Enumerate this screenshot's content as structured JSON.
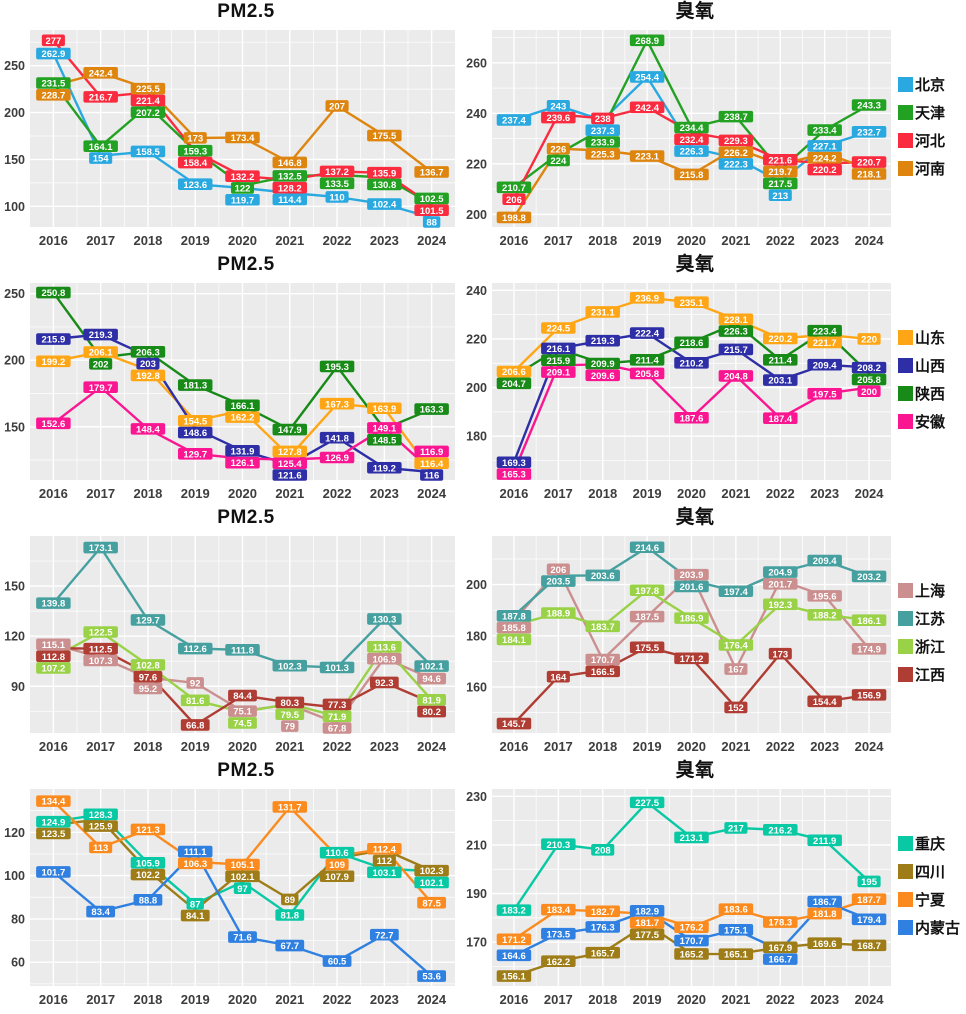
{
  "style": {
    "plot_background": "#ebebeb",
    "grid_color": "#ffffff",
    "axis_text_color": "#3d3d3d",
    "label_text_color": "#ffffff"
  },
  "chart_data": [
    {
      "type": "line",
      "row": 1,
      "panel": "left",
      "title": "PM2.5",
      "x": [
        "2016",
        "2017",
        "2018",
        "2019",
        "2020",
        "2021",
        "2022",
        "2023",
        "2024"
      ],
      "ylim": [
        78,
        288
      ],
      "yticks": [
        100,
        150,
        200,
        250
      ],
      "grid": true,
      "series": [
        {
          "name": "北京",
          "color": "#2aa9e0",
          "values": [
            262.9,
            154,
            158.5,
            123.6,
            119.7,
            114.4,
            110,
            102.4,
            88
          ]
        },
        {
          "name": "天津",
          "color": "#23a123",
          "values": [
            231.5,
            164.1,
            207.2,
            159.3,
            122,
            132.5,
            133.5,
            130.8,
            102.5
          ]
        },
        {
          "name": "河北",
          "color": "#fa2b3f",
          "values": [
            277,
            216.7,
            221.4,
            158.4,
            132.2,
            128.2,
            137.2,
            135.9,
            101.5
          ]
        },
        {
          "name": "河南",
          "color": "#dd850f",
          "values": [
            228.7,
            242.4,
            225.5,
            173,
            173.4,
            146.8,
            207,
            175.5,
            136.7
          ]
        }
      ]
    },
    {
      "type": "line",
      "row": 1,
      "panel": "right",
      "title": "臭氧",
      "legend_position": "right",
      "x": [
        "2016",
        "2017",
        "2018",
        "2019",
        "2020",
        "2021",
        "2022",
        "2023",
        "2024"
      ],
      "ylim": [
        195,
        273
      ],
      "yticks": [
        200,
        220,
        240,
        260
      ],
      "grid": true,
      "series": [
        {
          "name": "北京",
          "color": "#2aa9e0",
          "values": [
            237.4,
            243,
            237.3,
            254.4,
            226.3,
            222.3,
            213,
            227.1,
            232.7
          ]
        },
        {
          "name": "天津",
          "color": "#23a123",
          "values": [
            210.7,
            224,
            233.9,
            268.9,
            234.4,
            238.7,
            217.5,
            233.4,
            243.3
          ]
        },
        {
          "name": "河北",
          "color": "#fa2b3f",
          "values": [
            206,
            239.6,
            238,
            242.4,
            232.4,
            229.3,
            221.6,
            220.2,
            220.7
          ]
        },
        {
          "name": "河南",
          "color": "#dd850f",
          "values": [
            198.8,
            226,
            225.3,
            223.1,
            215.8,
            226.2,
            219.7,
            224.2,
            218.1
          ]
        }
      ]
    },
    {
      "type": "line",
      "row": 2,
      "panel": "left",
      "title": "PM2.5",
      "x": [
        "2016",
        "2017",
        "2018",
        "2019",
        "2020",
        "2021",
        "2022",
        "2023",
        "2024"
      ],
      "ylim": [
        110,
        258
      ],
      "yticks": [
        150,
        200,
        250
      ],
      "grid": true,
      "series": [
        {
          "name": "山东",
          "color": "#ffa617",
          "values": [
            199.2,
            206.1,
            192.8,
            154.5,
            162.2,
            127.8,
            167.3,
            163.9,
            116.4
          ]
        },
        {
          "name": "山西",
          "color": "#2e2ea6",
          "values": [
            215.9,
            219.3,
            203,
            148.6,
            131.9,
            121.6,
            141.8,
            119.2,
            116
          ]
        },
        {
          "name": "陕西",
          "color": "#178a17",
          "values": [
            250.8,
            202,
            206.3,
            181.3,
            166.1,
            147.9,
            195.3,
            148.5,
            163.3
          ]
        },
        {
          "name": "安徽",
          "color": "#fa1691",
          "values": [
            152.6,
            179.7,
            148.4,
            129.7,
            126.1,
            125.4,
            126.9,
            149.1,
            116.9
          ]
        }
      ]
    },
    {
      "type": "line",
      "row": 2,
      "panel": "right",
      "title": "臭氧",
      "legend_position": "right",
      "x": [
        "2016",
        "2017",
        "2018",
        "2019",
        "2020",
        "2021",
        "2022",
        "2023",
        "2024"
      ],
      "ylim": [
        162,
        243
      ],
      "yticks": [
        180,
        200,
        220,
        240
      ],
      "grid": true,
      "series": [
        {
          "name": "山东",
          "color": "#ffa617",
          "values": [
            206.6,
            224.5,
            231.1,
            236.9,
            235.1,
            228.1,
            220.2,
            221.7,
            220
          ]
        },
        {
          "name": "山西",
          "color": "#2e2ea6",
          "values": [
            169.3,
            216.1,
            219.3,
            222.4,
            210.2,
            215.7,
            203.1,
            209.4,
            208.2
          ]
        },
        {
          "name": "陕西",
          "color": "#178a17",
          "values": [
            204.7,
            215.9,
            209.9,
            211.4,
            218.6,
            226.3,
            211.4,
            223.4,
            205.8
          ]
        },
        {
          "name": "安徽",
          "color": "#fa1691",
          "values": [
            165.3,
            209.1,
            209.6,
            205.8,
            187.6,
            204.8,
            187.4,
            197.5,
            200
          ]
        }
      ]
    },
    {
      "type": "line",
      "row": 3,
      "panel": "left",
      "title": "PM2.5",
      "x": [
        "2016",
        "2017",
        "2018",
        "2019",
        "2020",
        "2021",
        "2022",
        "2023",
        "2024"
      ],
      "ylim": [
        62,
        180
      ],
      "yticks": [
        90,
        120,
        150
      ],
      "grid": true,
      "series": [
        {
          "name": "上海",
          "color": "#cb8f8f",
          "values": [
            115.1,
            107.3,
            95.2,
            92,
            75.1,
            79,
            67.8,
            106.9,
            94.6
          ]
        },
        {
          "name": "江苏",
          "color": "#47a0a0",
          "values": [
            139.8,
            173.1,
            129.7,
            112.6,
            111.8,
            102.3,
            101.3,
            130.3,
            102.1
          ]
        },
        {
          "name": "浙江",
          "color": "#99d147",
          "values": [
            107.2,
            122.5,
            102.8,
            81.6,
            74.5,
            79.5,
            71.9,
            113.6,
            81.9
          ]
        },
        {
          "name": "江西",
          "color": "#b03d33",
          "values": [
            112.8,
            112.5,
            97.6,
            66.8,
            84.4,
            80.3,
            77.3,
            92.3,
            80.2
          ]
        }
      ]
    },
    {
      "type": "line",
      "row": 3,
      "panel": "right",
      "title": "臭氧",
      "legend_position": "right",
      "x": [
        "2016",
        "2017",
        "2018",
        "2019",
        "2020",
        "2021",
        "2022",
        "2023",
        "2024"
      ],
      "ylim": [
        142,
        219
      ],
      "yticks": [
        160,
        180,
        200
      ],
      "grid": true,
      "series": [
        {
          "name": "上海",
          "color": "#cb8f8f",
          "values": [
            185.8,
            206,
            170.7,
            187.5,
            203.9,
            167,
            201.7,
            195.6,
            174.9
          ]
        },
        {
          "name": "江苏",
          "color": "#47a0a0",
          "values": [
            187.8,
            203.5,
            203.6,
            214.6,
            201.6,
            197.4,
            204.9,
            209.4,
            203.2
          ]
        },
        {
          "name": "浙江",
          "color": "#99d147",
          "values": [
            184.1,
            188.9,
            183.7,
            197.8,
            186.9,
            176.4,
            192.3,
            188.2,
            186.1
          ]
        },
        {
          "name": "江西",
          "color": "#b03d33",
          "values": [
            145.7,
            164,
            166.5,
            175.5,
            171.2,
            152,
            173,
            154.4,
            156.9
          ]
        }
      ]
    },
    {
      "type": "line",
      "row": 4,
      "panel": "left",
      "title": "PM2.5",
      "x": [
        "2016",
        "2017",
        "2018",
        "2019",
        "2020",
        "2021",
        "2022",
        "2023",
        "2024"
      ],
      "ylim": [
        49,
        140
      ],
      "yticks": [
        60,
        80,
        100,
        120
      ],
      "grid": true,
      "series": [
        {
          "name": "重庆",
          "color": "#09c8a4",
          "values": [
            124.9,
            128.3,
            105.9,
            87,
            97,
            81.8,
            110.6,
            103.1,
            102.1
          ]
        },
        {
          "name": "四川",
          "color": "#9e7d18",
          "values": [
            123.5,
            125.9,
            102.2,
            84.1,
            102.1,
            89,
            107.9,
            112,
            102.3
          ]
        },
        {
          "name": "宁夏",
          "color": "#fb8b1e",
          "values": [
            134.4,
            113,
            121.3,
            106.3,
            105.1,
            131.7,
            109,
            112.4,
            87.5
          ]
        },
        {
          "name": "内蒙古",
          "color": "#2f80e0",
          "values": [
            101.7,
            83.4,
            88.8,
            111.1,
            71.6,
            67.7,
            60.5,
            72.7,
            53.6
          ]
        }
      ]
    },
    {
      "type": "line",
      "row": 4,
      "panel": "right",
      "title": "臭氧",
      "legend_position": "right",
      "x": [
        "2016",
        "2017",
        "2018",
        "2019",
        "2020",
        "2021",
        "2022",
        "2023",
        "2024"
      ],
      "ylim": [
        152,
        233
      ],
      "yticks": [
        170,
        190,
        210,
        230
      ],
      "grid": true,
      "series": [
        {
          "name": "重庆",
          "color": "#09c8a4",
          "values": [
            183.2,
            210.3,
            208,
            227.5,
            213.1,
            217,
            216.2,
            211.9,
            195
          ]
        },
        {
          "name": "四川",
          "color": "#9e7d18",
          "values": [
            156.1,
            162.2,
            165.7,
            177.5,
            165.2,
            165.1,
            167.9,
            169.6,
            168.7
          ]
        },
        {
          "name": "宁夏",
          "color": "#fb8b1e",
          "values": [
            171.2,
            183.4,
            182.7,
            181.7,
            176.2,
            183.6,
            178.3,
            181.8,
            187.7
          ]
        },
        {
          "name": "内蒙古",
          "color": "#2f80e0",
          "values": [
            164.6,
            173.5,
            176.3,
            182.9,
            170.7,
            175.1,
            166.7,
            186.7,
            179.4
          ]
        }
      ]
    }
  ]
}
